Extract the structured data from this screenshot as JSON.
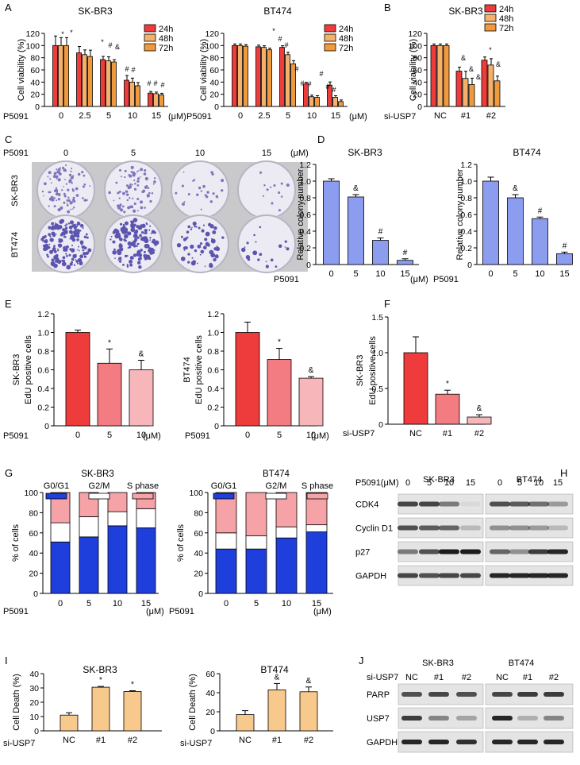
{
  "colors": {
    "red": "#ee3b3b",
    "orange_mid": "#f5b06a",
    "orange": "#f09a3e",
    "blue": "#8c9df0",
    "blue_dark": "#1f3fdc",
    "pink": "#f6a3a8",
    "red_mid": "#f27c82",
    "red_light": "#f7b6ba",
    "peach": "#f8c98c"
  },
  "figure": {
    "panels": [
      "A",
      "B",
      "C",
      "D",
      "E",
      "F",
      "G",
      "H",
      "I",
      "J"
    ],
    "c_panel": {
      "title": "P5091",
      "doses": [
        "0",
        "5",
        "10",
        "15"
      ],
      "unit": "(μM)",
      "rows": [
        "SK-BR3",
        "BT474"
      ]
    },
    "h_panel": {
      "treat": "P5091(μM)",
      "groups": [
        "SK-BR3",
        "BT474"
      ],
      "lanes": [
        "0",
        "5",
        "10",
        "15"
      ],
      "rows": [
        "CDK4",
        "Cyclin D1",
        "p27",
        "GAPDH"
      ]
    },
    "j_panel": {
      "treat": "si-USP7",
      "groups": [
        "SK-BR3",
        "BT474"
      ],
      "lanes": [
        "NC",
        "#1",
        "#2"
      ],
      "rows": [
        "PARP",
        "USP7",
        "GAPDH"
      ]
    }
  },
  "chart_data": [
    {
      "panel": "A",
      "type": "bar",
      "title": "SK-BR3",
      "ylabel": "Cell viability (%)",
      "ylim": [
        0,
        120
      ],
      "xprefix": "P5091",
      "categories": [
        "0",
        "2.5",
        "5",
        "10",
        "15"
      ],
      "unit": "(μM)",
      "legend": [
        "24h",
        "48h",
        "72h"
      ],
      "series": [
        {
          "name": "24h",
          "values": [
            100,
            88,
            77,
            43,
            22
          ]
        },
        {
          "name": "48h",
          "values": [
            100,
            85,
            75,
            40,
            21
          ]
        },
        {
          "name": "72h",
          "values": [
            100,
            82,
            73,
            34,
            19
          ]
        }
      ],
      "annotations": [
        "*",
        "*",
        "#",
        "&",
        "#",
        "#",
        "#",
        "#",
        "#"
      ]
    },
    {
      "panel": "A",
      "type": "bar",
      "title": "BT474",
      "ylabel": "Cell viability (%)",
      "ylim": [
        0,
        120
      ],
      "xprefix": "P5091",
      "categories": [
        "0",
        "2.5",
        "5",
        "10",
        "15"
      ],
      "unit": "(μM)",
      "legend": [
        "24h",
        "48h",
        "72h"
      ],
      "series": [
        {
          "name": "24h",
          "values": [
            100,
            98,
            97,
            37,
            35
          ]
        },
        {
          "name": "48h",
          "values": [
            100,
            97,
            85,
            16,
            15
          ]
        },
        {
          "name": "72h",
          "values": [
            99,
            93,
            70,
            15,
            8
          ]
        }
      ],
      "annotations": [
        "*",
        "#",
        "#",
        "#",
        "#",
        "#",
        "#",
        "#"
      ]
    },
    {
      "panel": "B",
      "type": "bar",
      "title": "SK-BR3",
      "ylabel": "Cell viability (%)",
      "ylim": [
        0,
        120
      ],
      "xprefix": "si-USP7",
      "categories": [
        "NC",
        "#1",
        "#2"
      ],
      "legend": [
        "24h",
        "48h",
        "72h"
      ],
      "series": [
        {
          "name": "24h",
          "values": [
            100,
            58,
            76
          ]
        },
        {
          "name": "48h",
          "values": [
            100,
            46,
            68
          ]
        },
        {
          "name": "72h",
          "values": [
            100,
            36,
            42
          ]
        }
      ],
      "annotations": [
        "&",
        "&",
        "&",
        "*",
        "&"
      ]
    },
    {
      "panel": "D",
      "type": "bar",
      "title": "SK-BR3",
      "ylabel": "Relative colony number",
      "ylim": [
        0,
        1.2
      ],
      "yticks": [
        "0",
        "0.2",
        "0.4",
        "0.6",
        "0.8",
        "1.0",
        "1.2"
      ],
      "xprefix": "P5091",
      "categories": [
        "0",
        "5",
        "10",
        "15"
      ],
      "unit": "(μM)",
      "values": [
        1.0,
        0.81,
        0.29,
        0.05
      ],
      "annotations": [
        "",
        "&",
        "#",
        "#"
      ]
    },
    {
      "panel": "D",
      "type": "bar",
      "title": "BT474",
      "ylabel": "Relative colony number",
      "ylim": [
        0,
        1.2
      ],
      "yticks": [
        "0",
        "0.2",
        "0.4",
        "0.6",
        "0.8",
        "1.0",
        "1.2"
      ],
      "xprefix": "P5091",
      "categories": [
        "0",
        "5",
        "10",
        "15"
      ],
      "unit": "(μM)",
      "values": [
        1.0,
        0.8,
        0.55,
        0.13
      ],
      "annotations": [
        "",
        "&",
        "#",
        "#"
      ]
    },
    {
      "panel": "E",
      "type": "bar",
      "ylabel": "SK-BR3\nEdU positive cells",
      "ylim": [
        0,
        1.2
      ],
      "yticks": [
        "0",
        "0.2",
        "0.4",
        "0.6",
        "0.8",
        "1.0",
        "1.2"
      ],
      "xprefix": "P5091",
      "categories": [
        "0",
        "5",
        "10"
      ],
      "unit": "(μM)",
      "values": [
        1.0,
        0.67,
        0.6
      ],
      "annotations": [
        "",
        "*",
        "&"
      ]
    },
    {
      "panel": "E",
      "type": "bar",
      "ylabel": "BT474\nEdU positive cells",
      "ylim": [
        0,
        1.2
      ],
      "yticks": [
        "0",
        "0.2",
        "0.4",
        "0.6",
        "0.8",
        "1.0",
        "1.2"
      ],
      "xprefix": "P5091",
      "categories": [
        "0",
        "5",
        "10"
      ],
      "unit": "(μM)",
      "values": [
        1.0,
        0.71,
        0.51
      ],
      "annotations": [
        "",
        "*",
        "&"
      ]
    },
    {
      "panel": "F",
      "type": "bar",
      "ylabel": "SK-BR3\nEdU positive cells",
      "ylim": [
        0,
        1.5
      ],
      "yticks": [
        "0",
        "0.5",
        "1.0",
        "1.5"
      ],
      "xprefix": "si-USP7",
      "categories": [
        "NC",
        "#1",
        "#2"
      ],
      "values": [
        1.0,
        0.42,
        0.1
      ],
      "annotations": [
        "",
        "*",
        "&"
      ]
    },
    {
      "panel": "G",
      "type": "bar",
      "title": "SK-BR3",
      "ylabel": "% of cells",
      "ylim": [
        0,
        100
      ],
      "xprefix": "P5091",
      "categories": [
        "0",
        "5",
        "10",
        "15"
      ],
      "unit": "(μM)",
      "legend": [
        "G0/G1",
        "G2/M",
        "S phase"
      ],
      "series": [
        {
          "name": "G0/G1",
          "values": [
            51,
            56,
            67,
            65
          ]
        },
        {
          "name": "G2/M",
          "values": [
            19,
            20,
            14,
            19
          ]
        },
        {
          "name": "S phase",
          "values": [
            30,
            24,
            19,
            16
          ]
        }
      ]
    },
    {
      "panel": "G",
      "type": "bar",
      "title": "BT474",
      "ylabel": "% of cells",
      "ylim": [
        0,
        100
      ],
      "xprefix": "P5091",
      "categories": [
        "0",
        "5",
        "10",
        "15"
      ],
      "unit": "(μM)",
      "legend": [
        "G0/G1",
        "G2/M",
        "S phase"
      ],
      "series": [
        {
          "name": "G0/G1",
          "values": [
            44,
            44,
            55,
            61
          ]
        },
        {
          "name": "G2/M",
          "values": [
            16,
            13,
            11,
            7
          ]
        },
        {
          "name": "S phase",
          "values": [
            40,
            43,
            34,
            32
          ]
        }
      ]
    },
    {
      "panel": "I",
      "type": "bar",
      "title": "SK-BR3",
      "ylabel": "Cell Death (%)",
      "ylim": [
        0,
        40
      ],
      "yticks": [
        "0",
        "10",
        "20",
        "30",
        "40"
      ],
      "xprefix": "si-USP7",
      "categories": [
        "NC",
        "#1",
        "#2"
      ],
      "values": [
        11,
        30.5,
        27.5
      ],
      "annotations": [
        "",
        "*",
        "*"
      ]
    },
    {
      "panel": "I",
      "type": "bar",
      "title": "BT474",
      "ylabel": "Cell Death (%)",
      "ylim": [
        0,
        60
      ],
      "yticks": [
        "0",
        "20",
        "40",
        "60"
      ],
      "xprefix": "si-USP7",
      "categories": [
        "NC",
        "#1",
        "#2"
      ],
      "values": [
        17,
        43,
        41
      ],
      "annotations": [
        "",
        "&",
        "&"
      ]
    }
  ]
}
